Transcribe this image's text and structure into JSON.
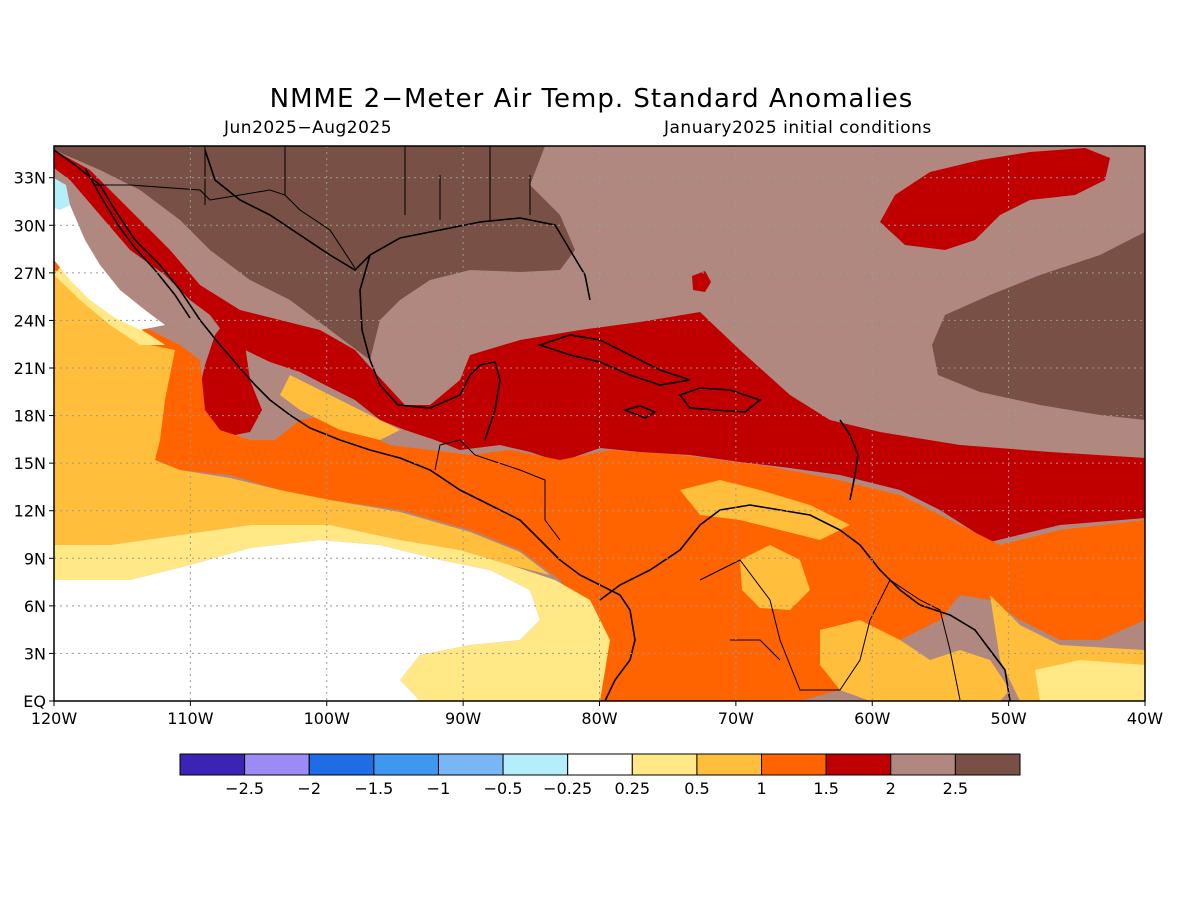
{
  "title": "NMME 2−Meter Air Temp. Standard Anomalies",
  "period": "Jun2025−Aug2025",
  "initial_conditions": "January2025 initial conditions",
  "map": {
    "lon_range": [
      -120,
      -40
    ],
    "lat_range": [
      0,
      35
    ],
    "lat_ticks": [
      {
        "value": 33,
        "label": "33N"
      },
      {
        "value": 30,
        "label": "30N"
      },
      {
        "value": 27,
        "label": "27N"
      },
      {
        "value": 24,
        "label": "24N"
      },
      {
        "value": 21,
        "label": "21N"
      },
      {
        "value": 18,
        "label": "18N"
      },
      {
        "value": 15,
        "label": "15N"
      },
      {
        "value": 12,
        "label": "12N"
      },
      {
        "value": 9,
        "label": "9N"
      },
      {
        "value": 6,
        "label": "6N"
      },
      {
        "value": 3,
        "label": "3N"
      },
      {
        "value": 0,
        "label": "EQ"
      }
    ],
    "lon_ticks": [
      {
        "value": -120,
        "label": "120W"
      },
      {
        "value": -110,
        "label": "110W"
      },
      {
        "value": -100,
        "label": "100W"
      },
      {
        "value": -90,
        "label": "90W"
      },
      {
        "value": -80,
        "label": "80W"
      },
      {
        "value": -70,
        "label": "70W"
      },
      {
        "value": -60,
        "label": "60W"
      },
      {
        "value": -50,
        "label": "50W"
      },
      {
        "value": -40,
        "label": "40W"
      }
    ],
    "grid": "dotted"
  },
  "colorbar": {
    "colors": [
      "#3b23b4",
      "#9c8af5",
      "#1e6de6",
      "#3e98f0",
      "#78b7f5",
      "#b4eefa",
      "#ffffff",
      "#ffe885",
      "#ffbe3c",
      "#ff6400",
      "#c00000",
      "#b08880",
      "#785046"
    ],
    "labels": [
      "−2.5",
      "−2",
      "−1.5",
      "−1",
      "−0.5",
      "−0.25",
      "0.25",
      "0.5",
      "1",
      "1.5",
      "2",
      "2.5"
    ]
  }
}
